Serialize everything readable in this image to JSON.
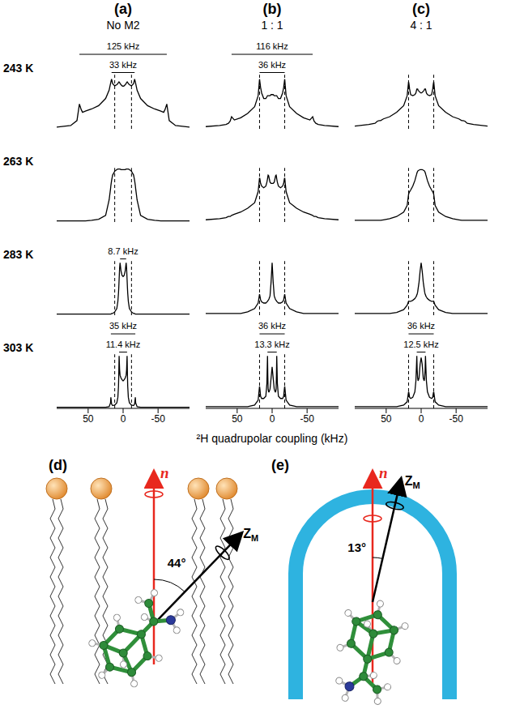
{
  "chart_data": [
    {
      "type": "line",
      "title": "(a)",
      "subtitle": "No M2",
      "color": "#000000",
      "tick_labels": "x",
      "x": [
        95,
        75,
        66,
        62.5,
        60,
        58,
        54,
        45,
        35,
        25,
        20,
        18,
        17.5,
        16.5,
        15,
        12,
        9,
        7.5,
        6.6,
        6.2,
        5.7,
        5,
        4.35,
        3,
        1.5,
        0,
        -1.5,
        -3,
        -4.35,
        -5,
        -5.7,
        -6.2,
        -6.6,
        -7.5,
        -9,
        -12,
        -15,
        -16.5,
        -17.5,
        -18,
        -20,
        -25,
        -35,
        -45,
        -54,
        -58,
        -60,
        -62.5,
        -66,
        -75,
        -95
      ],
      "xlim": [
        95,
        -95
      ],
      "xticks": [
        50,
        0,
        -50
      ],
      "ylim": [
        0,
        1.6
      ],
      "reference_lines": [
        12,
        -12
      ],
      "series": [
        {
          "name": "243 K",
          "values": [
            0.03,
            0.06,
            0.15,
            0.45,
            0.35,
            0.3,
            0.32,
            0.36,
            0.42,
            0.55,
            0.7,
            0.82,
            0.85,
            0.9,
            0.82,
            0.78,
            0.8,
            0.82,
            0.84,
            0.85,
            0.85,
            0.84,
            0.82,
            0.8,
            0.78,
            0.77,
            0.78,
            0.8,
            0.82,
            0.84,
            0.85,
            0.85,
            0.84,
            0.82,
            0.8,
            0.78,
            0.82,
            0.9,
            0.85,
            0.82,
            0.7,
            0.55,
            0.42,
            0.36,
            0.32,
            0.3,
            0.35,
            0.45,
            0.15,
            0.06,
            0.03
          ]
        },
        {
          "name": "263 K",
          "values": [
            0.02,
            0.02,
            0.02,
            0.02,
            0.02,
            0.02,
            0.02,
            0.03,
            0.05,
            0.12,
            0.4,
            0.6,
            0.66,
            0.75,
            0.85,
            0.92,
            0.95,
            0.96,
            0.96,
            0.96,
            0.96,
            0.96,
            0.96,
            0.95,
            0.95,
            0.95,
            0.95,
            0.95,
            0.96,
            0.96,
            0.96,
            0.96,
            0.96,
            0.96,
            0.95,
            0.92,
            0.85,
            0.75,
            0.66,
            0.6,
            0.4,
            0.12,
            0.05,
            0.03,
            0.02,
            0.02,
            0.02,
            0.02,
            0.02,
            0.02,
            0.02
          ]
        },
        {
          "name": "283 K",
          "values": [
            0.02,
            0.02,
            0.02,
            0.02,
            0.02,
            0.02,
            0.02,
            0.02,
            0.02,
            0.02,
            0.02,
            0.02,
            0.02,
            0.03,
            0.03,
            0.06,
            0.12,
            0.25,
            0.4,
            0.5,
            0.65,
            0.85,
            0.95,
            0.8,
            0.72,
            0.7,
            0.72,
            0.8,
            0.95,
            0.85,
            0.65,
            0.5,
            0.4,
            0.25,
            0.12,
            0.06,
            0.03,
            0.03,
            0.02,
            0.02,
            0.02,
            0.02,
            0.02,
            0.02,
            0.02,
            0.02,
            0.02,
            0.02,
            0.02,
            0.02,
            0.02
          ]
        },
        {
          "name": "303 K",
          "values": [
            0.02,
            0.02,
            0.02,
            0.02,
            0.02,
            0.02,
            0.02,
            0.02,
            0.02,
            0.02,
            0.03,
            0.1,
            0.2,
            0.08,
            0.05,
            0.06,
            0.1,
            0.2,
            0.4,
            0.6,
            0.95,
            0.7,
            0.6,
            0.55,
            0.52,
            0.5,
            0.52,
            0.55,
            0.6,
            0.7,
            0.95,
            0.6,
            0.4,
            0.2,
            0.1,
            0.06,
            0.05,
            0.08,
            0.2,
            0.1,
            0.03,
            0.02,
            0.02,
            0.02,
            0.02,
            0.02,
            0.02,
            0.02,
            0.02,
            0.02,
            0.02
          ]
        }
      ],
      "annotations": [
        {
          "series": "243 K",
          "text": "33 kHz",
          "x": [
            16.5,
            -16.5
          ]
        },
        {
          "series": "243 K",
          "text": "125 kHz",
          "x": [
            62.5,
            -62.5
          ]
        },
        {
          "series": "283 K",
          "text": "8.7 kHz",
          "x": [
            4.35,
            -4.35
          ]
        },
        {
          "series": "303 K",
          "text": "11.4 kHz",
          "x": [
            5.7,
            -5.7
          ]
        },
        {
          "series": "303 K",
          "text": "35 kHz",
          "x": [
            17.5,
            -17.5
          ]
        }
      ]
    },
    {
      "type": "line",
      "title": "(b)",
      "subtitle": "1 : 1",
      "color": "#000000",
      "tick_labels": "x",
      "x": [
        95,
        75,
        66,
        62.5,
        60,
        58,
        54,
        45,
        35,
        25,
        20,
        18,
        17.5,
        16.5,
        15,
        12,
        9,
        7.5,
        6.6,
        6.2,
        5.7,
        5,
        4.35,
        3,
        1.5,
        0,
        -1.5,
        -3,
        -4.35,
        -5,
        -5.7,
        -6.2,
        -6.6,
        -7.5,
        -9,
        -12,
        -15,
        -16.5,
        -17.5,
        -18,
        -20,
        -25,
        -35,
        -45,
        -54,
        -58,
        -60,
        -62.5,
        -66,
        -75,
        -95
      ],
      "xlim": [
        95,
        -95
      ],
      "xticks": [
        50,
        0,
        -50
      ],
      "ylim": [
        0,
        1.6
      ],
      "reference_lines": [
        18,
        -18
      ],
      "series": [
        {
          "name": "243 K",
          "values": [
            0.04,
            0.06,
            0.08,
            0.1,
            0.14,
            0.22,
            0.16,
            0.2,
            0.28,
            0.4,
            0.6,
            0.9,
            0.85,
            0.75,
            0.65,
            0.55,
            0.55,
            0.58,
            0.6,
            0.6,
            0.6,
            0.6,
            0.6,
            0.6,
            0.62,
            0.62,
            0.62,
            0.6,
            0.6,
            0.6,
            0.6,
            0.6,
            0.6,
            0.58,
            0.55,
            0.55,
            0.65,
            0.75,
            0.85,
            0.9,
            0.6,
            0.4,
            0.28,
            0.2,
            0.16,
            0.22,
            0.14,
            0.1,
            0.08,
            0.06,
            0.04
          ]
        },
        {
          "name": "263 K",
          "values": [
            0.04,
            0.06,
            0.08,
            0.1,
            0.1,
            0.12,
            0.14,
            0.18,
            0.25,
            0.35,
            0.55,
            0.8,
            0.78,
            0.7,
            0.65,
            0.62,
            0.65,
            0.72,
            0.78,
            0.82,
            0.85,
            0.84,
            0.8,
            0.72,
            0.7,
            0.7,
            0.7,
            0.72,
            0.8,
            0.84,
            0.85,
            0.82,
            0.78,
            0.72,
            0.65,
            0.62,
            0.65,
            0.7,
            0.78,
            0.8,
            0.55,
            0.35,
            0.25,
            0.18,
            0.14,
            0.12,
            0.1,
            0.1,
            0.08,
            0.06,
            0.04
          ]
        },
        {
          "name": "283 K",
          "values": [
            0.03,
            0.03,
            0.03,
            0.03,
            0.03,
            0.03,
            0.03,
            0.03,
            0.06,
            0.12,
            0.22,
            0.38,
            0.35,
            0.28,
            0.24,
            0.22,
            0.22,
            0.24,
            0.25,
            0.26,
            0.27,
            0.28,
            0.3,
            0.35,
            0.6,
            0.95,
            0.6,
            0.35,
            0.3,
            0.28,
            0.27,
            0.26,
            0.25,
            0.24,
            0.22,
            0.22,
            0.24,
            0.28,
            0.35,
            0.38,
            0.22,
            0.12,
            0.06,
            0.03,
            0.03,
            0.03,
            0.03,
            0.03,
            0.03,
            0.03,
            0.03
          ]
        },
        {
          "name": "303 K",
          "values": [
            0.03,
            0.03,
            0.03,
            0.03,
            0.03,
            0.03,
            0.03,
            0.03,
            0.03,
            0.06,
            0.15,
            0.4,
            0.35,
            0.22,
            0.18,
            0.18,
            0.22,
            0.45,
            0.95,
            0.6,
            0.35,
            0.3,
            0.3,
            0.35,
            0.55,
            0.75,
            0.55,
            0.35,
            0.3,
            0.3,
            0.35,
            0.6,
            0.95,
            0.45,
            0.22,
            0.18,
            0.18,
            0.22,
            0.35,
            0.4,
            0.15,
            0.06,
            0.03,
            0.03,
            0.03,
            0.03,
            0.03,
            0.03,
            0.03,
            0.03,
            0.03
          ]
        }
      ],
      "annotations": [
        {
          "series": "243 K",
          "text": "36 kHz",
          "x": [
            18,
            -18
          ]
        },
        {
          "series": "243 K",
          "text": "116 kHz",
          "x": [
            58,
            -58
          ]
        },
        {
          "series": "303 K",
          "text": "13.3 kHz",
          "x": [
            6.65,
            -6.65
          ]
        },
        {
          "series": "303 K",
          "text": "36 kHz",
          "x": [
            18,
            -18
          ]
        }
      ]
    },
    {
      "type": "line",
      "title": "(c)",
      "subtitle": "4 : 1",
      "color": "#000000",
      "tick_labels": "x",
      "x": [
        95,
        75,
        66,
        62.5,
        60,
        58,
        54,
        45,
        35,
        25,
        20,
        18,
        17.5,
        16.5,
        15,
        12,
        9,
        7.5,
        6.6,
        6.2,
        5.7,
        5,
        4.35,
        3,
        1.5,
        0,
        -1.5,
        -3,
        -4.35,
        -5,
        -5.7,
        -6.2,
        -6.6,
        -7.5,
        -9,
        -12,
        -15,
        -16.5,
        -17.5,
        -18,
        -20,
        -25,
        -35,
        -45,
        -54,
        -58,
        -60,
        -62.5,
        -66,
        -75,
        -95
      ],
      "xlim": [
        95,
        -95
      ],
      "xticks": [
        50,
        0,
        -50
      ],
      "ylim": [
        0,
        1.6
      ],
      "reference_lines": [
        18,
        -18
      ],
      "series": [
        {
          "name": "243 K",
          "values": [
            0.05,
            0.08,
            0.1,
            0.14,
            0.15,
            0.15,
            0.18,
            0.22,
            0.3,
            0.42,
            0.6,
            0.85,
            0.82,
            0.72,
            0.62,
            0.6,
            0.62,
            0.65,
            0.7,
            0.72,
            0.72,
            0.72,
            0.7,
            0.68,
            0.66,
            0.65,
            0.66,
            0.68,
            0.7,
            0.72,
            0.72,
            0.72,
            0.7,
            0.65,
            0.62,
            0.6,
            0.62,
            0.72,
            0.82,
            0.85,
            0.6,
            0.42,
            0.3,
            0.22,
            0.18,
            0.15,
            0.15,
            0.14,
            0.1,
            0.08,
            0.05
          ]
        },
        {
          "name": "263 K",
          "values": [
            0.03,
            0.03,
            0.03,
            0.03,
            0.03,
            0.03,
            0.04,
            0.06,
            0.1,
            0.18,
            0.3,
            0.5,
            0.52,
            0.55,
            0.58,
            0.65,
            0.75,
            0.82,
            0.86,
            0.88,
            0.9,
            0.92,
            0.93,
            0.94,
            0.95,
            0.95,
            0.95,
            0.94,
            0.93,
            0.92,
            0.9,
            0.88,
            0.86,
            0.82,
            0.75,
            0.65,
            0.58,
            0.55,
            0.52,
            0.5,
            0.3,
            0.18,
            0.1,
            0.06,
            0.04,
            0.03,
            0.03,
            0.03,
            0.03,
            0.03,
            0.03
          ]
        },
        {
          "name": "283 K",
          "values": [
            0.03,
            0.03,
            0.03,
            0.03,
            0.03,
            0.03,
            0.03,
            0.03,
            0.05,
            0.1,
            0.18,
            0.25,
            0.25,
            0.25,
            0.25,
            0.27,
            0.3,
            0.33,
            0.35,
            0.37,
            0.38,
            0.42,
            0.48,
            0.6,
            0.8,
            0.95,
            0.8,
            0.6,
            0.48,
            0.42,
            0.38,
            0.37,
            0.35,
            0.33,
            0.3,
            0.27,
            0.25,
            0.25,
            0.25,
            0.25,
            0.18,
            0.1,
            0.05,
            0.03,
            0.03,
            0.03,
            0.03,
            0.03,
            0.03,
            0.03,
            0.03
          ]
        },
        {
          "name": "303 K",
          "values": [
            0.03,
            0.03,
            0.03,
            0.03,
            0.03,
            0.03,
            0.03,
            0.03,
            0.03,
            0.06,
            0.12,
            0.3,
            0.28,
            0.2,
            0.18,
            0.2,
            0.3,
            0.5,
            0.8,
            0.95,
            0.7,
            0.55,
            0.5,
            0.55,
            0.8,
            0.92,
            0.8,
            0.55,
            0.5,
            0.55,
            0.7,
            0.95,
            0.8,
            0.5,
            0.3,
            0.2,
            0.18,
            0.2,
            0.28,
            0.3,
            0.12,
            0.06,
            0.03,
            0.03,
            0.03,
            0.03,
            0.03,
            0.03,
            0.03,
            0.03,
            0.03
          ]
        }
      ],
      "annotations": [
        {
          "series": "303 K",
          "text": "12.5 kHz",
          "x": [
            6.25,
            -6.25
          ]
        },
        {
          "series": "303 K",
          "text": "36 kHz",
          "x": [
            18,
            -18
          ]
        }
      ]
    }
  ],
  "xlabel": "²H quadrupolar coupling (kHz)",
  "diagrams": [
    {
      "label": "(d)",
      "axis_n": "n",
      "axis_z": "Z",
      "axis_z_subscript": "M",
      "angle": 44,
      "angle_label": "44°"
    },
    {
      "label": "(e)",
      "axis_n": "n",
      "axis_z": "Z",
      "axis_z_subscript": "M",
      "angle": 13,
      "angle_label": "13°"
    }
  ]
}
